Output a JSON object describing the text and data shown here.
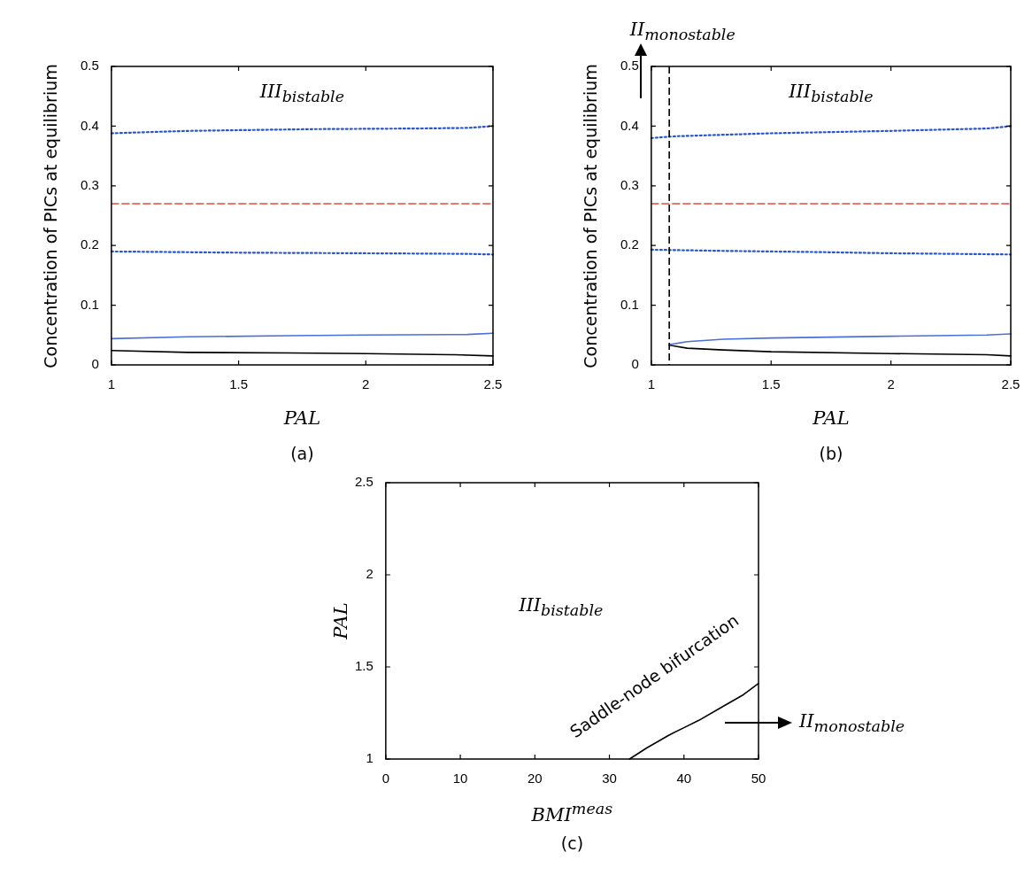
{
  "chart_data": [
    {
      "type": "line",
      "xlabel": "PAL",
      "ylabel": "Concentration of PICs at equilibrium",
      "xlim": [
        1,
        2.5
      ],
      "xticks": [
        1,
        1.5,
        2,
        2.5
      ],
      "ylim": [
        0,
        0.5
      ],
      "yticks": [
        0,
        0.1,
        0.2,
        0.3,
        0.4,
        0.5
      ],
      "series": [
        {
          "color": "#2a55d0",
          "line_style": "dotted",
          "x": [
            1,
            1.3,
            1.8,
            2.2,
            2.4,
            2.5
          ],
          "values": [
            0.388,
            0.392,
            0.395,
            0.396,
            0.397,
            0.4
          ]
        },
        {
          "color": "#e8483a",
          "line_style": "dashed",
          "x": [
            1,
            2.5
          ],
          "values": [
            0.27,
            0.27
          ]
        },
        {
          "color": "#2a55d0",
          "line_style": "dotted",
          "x": [
            1,
            1.5,
            2,
            2.4,
            2.5
          ],
          "values": [
            0.19,
            0.188,
            0.187,
            0.186,
            0.185
          ]
        },
        {
          "color": "#4a6fd6",
          "line_style": "solid",
          "x": [
            1,
            1.3,
            1.7,
            2,
            2.4,
            2.5
          ],
          "values": [
            0.044,
            0.047,
            0.049,
            0.05,
            0.051,
            0.053
          ]
        },
        {
          "color": "#000000",
          "line_style": "solid",
          "x": [
            1,
            1.3,
            1.7,
            2,
            2.35,
            2.5
          ],
          "values": [
            0.024,
            0.021,
            0.02,
            0.019,
            0.017,
            0.015
          ]
        }
      ],
      "annotations": [
        "III$_{bistable}$",
        "(a)"
      ]
    },
    {
      "type": "line",
      "xlabel": "PAL",
      "ylabel": "Concentration of PICs at equilibrium",
      "xlim": [
        1,
        2.5
      ],
      "xticks": [
        1,
        1.5,
        2,
        2.5
      ],
      "ylim": [
        0,
        0.5
      ],
      "yticks": [
        0,
        0.1,
        0.2,
        0.3,
        0.4,
        0.5
      ],
      "series": [
        {
          "color": "#2a55d0",
          "line_style": "dotted",
          "x": [
            1,
            1.1,
            1.5,
            2,
            2.4,
            2.5
          ],
          "values": [
            0.38,
            0.383,
            0.388,
            0.392,
            0.396,
            0.4
          ]
        },
        {
          "color": "#e8483a",
          "line_style": "dashed",
          "x": [
            1,
            2.5
          ],
          "values": [
            0.27,
            0.27
          ]
        },
        {
          "color": "#2a55d0",
          "line_style": "dotted",
          "x": [
            1,
            1.3,
            1.7,
            2,
            2.5
          ],
          "values": [
            0.193,
            0.191,
            0.189,
            0.187,
            0.185
          ]
        },
        {
          "color": "#4a6fd6",
          "line_style": "solid",
          "x": [
            1.075,
            1.15,
            1.3,
            1.5,
            2,
            2.4,
            2.5
          ],
          "values": [
            0.034,
            0.039,
            0.043,
            0.045,
            0.048,
            0.05,
            0.052
          ]
        },
        {
          "color": "#000000",
          "line_style": "solid",
          "x": [
            1.075,
            1.15,
            1.3,
            1.5,
            2,
            2.4,
            2.5
          ],
          "values": [
            0.033,
            0.028,
            0.025,
            0.022,
            0.019,
            0.017,
            0.015
          ]
        }
      ],
      "ref_lines": [
        {
          "axis": "x",
          "value": 1.075,
          "color": "#000000",
          "line_style": "dashed"
        }
      ],
      "annotations": [
        "III$_{bistable}$",
        "II$_{monostable}$",
        "(b)"
      ]
    },
    {
      "type": "line",
      "xlabel": "BMI$^{meas}$",
      "ylabel": "PAL",
      "xlim": [
        0,
        50
      ],
      "xticks": [
        0,
        10,
        20,
        30,
        40,
        50
      ],
      "ylim": [
        1,
        2.5
      ],
      "yticks": [
        1,
        1.5,
        2,
        2.5
      ],
      "series": [
        {
          "color": "#000000",
          "line_style": "solid",
          "x": [
            32.7,
            35,
            38,
            40,
            42,
            45,
            48,
            50
          ],
          "values": [
            1,
            1.06,
            1.13,
            1.17,
            1.21,
            1.28,
            1.35,
            1.41
          ]
        }
      ],
      "annotations": [
        "III$_{bistable}$",
        "Saddle-node bifurcation",
        "II$_{monostable}$",
        "(c)"
      ]
    }
  ]
}
